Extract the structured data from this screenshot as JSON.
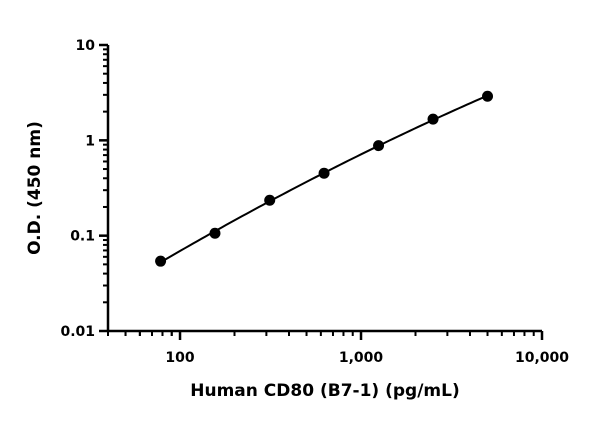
{
  "chart_data": {
    "type": "scatter",
    "title": "",
    "xlabel": "Human CD80 (B7-1) (pg/mL)",
    "ylabel": "O.D. (450 nm)",
    "xscale": "log",
    "yscale": "log",
    "xlim": [
      40,
      10000
    ],
    "ylim": [
      0.01,
      10
    ],
    "grid": false,
    "legend": "none",
    "x_ticks": [
      {
        "value": 100,
        "label": "100"
      },
      {
        "value": 1000,
        "label": "1,000"
      },
      {
        "value": 10000,
        "label": "10,000"
      }
    ],
    "y_ticks": [
      {
        "value": 0.01,
        "label": "0.01"
      },
      {
        "value": 0.1,
        "label": "0.1"
      },
      {
        "value": 1,
        "label": "1"
      },
      {
        "value": 10,
        "label": "10"
      }
    ],
    "series": [
      {
        "x": [
          78.1,
          156,
          313,
          625,
          1250,
          2500,
          5000
        ],
        "y": [
          0.054,
          0.106,
          0.235,
          0.452,
          0.88,
          1.67,
          2.9
        ],
        "fit_line": true,
        "color": "#000000"
      }
    ]
  }
}
